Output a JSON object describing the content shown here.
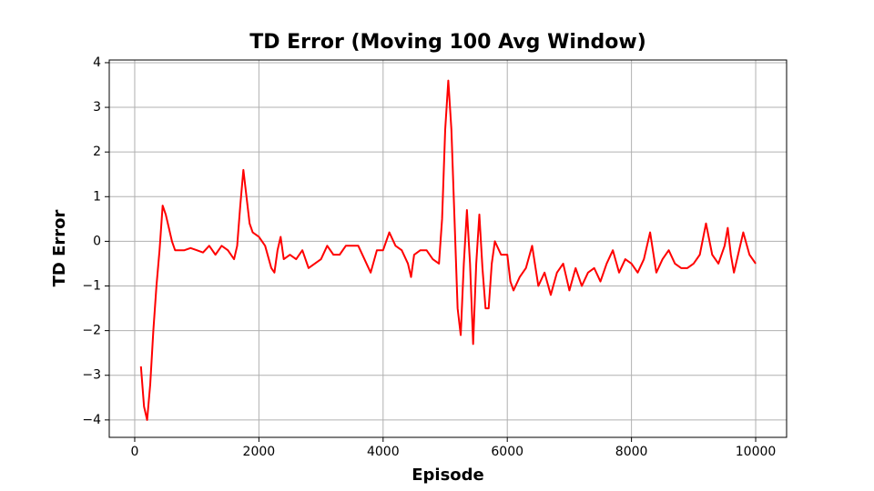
{
  "chart_data": {
    "type": "line",
    "title": "TD Error (Moving 100 Avg Window)",
    "xlabel": "Episode",
    "ylabel": "TD Error",
    "grid": true,
    "xlim": [
      -410,
      10498
    ],
    "ylim": [
      -4.39,
      4.06
    ],
    "xticks": [
      0,
      2000,
      4000,
      6000,
      8000,
      10000
    ],
    "yticks": [
      {
        "value": -4,
        "label": "−4"
      },
      {
        "value": -3,
        "label": "−3"
      },
      {
        "value": -2,
        "label": "−2"
      },
      {
        "value": -1,
        "label": "−1"
      },
      0,
      1,
      2,
      3,
      4
    ],
    "x": [
      100,
      150,
      200,
      250,
      300,
      350,
      400,
      450,
      500,
      550,
      600,
      650,
      700,
      800,
      900,
      1000,
      1100,
      1200,
      1300,
      1400,
      1500,
      1600,
      1650,
      1700,
      1750,
      1800,
      1850,
      1900,
      2000,
      2100,
      2200,
      2250,
      2300,
      2350,
      2400,
      2500,
      2600,
      2700,
      2800,
      2900,
      3000,
      3100,
      3200,
      3300,
      3400,
      3500,
      3600,
      3700,
      3800,
      3900,
      4000,
      4100,
      4200,
      4300,
      4400,
      4450,
      4500,
      4600,
      4700,
      4800,
      4900,
      4950,
      5000,
      5050,
      5100,
      5150,
      5200,
      5250,
      5300,
      5350,
      5400,
      5450,
      5500,
      5550,
      5600,
      5650,
      5700,
      5750,
      5800,
      5900,
      6000,
      6050,
      6100,
      6200,
      6300,
      6400,
      6500,
      6600,
      6700,
      6800,
      6900,
      7000,
      7100,
      7200,
      7300,
      7400,
      7500,
      7600,
      7700,
      7800,
      7900,
      8000,
      8100,
      8200,
      8300,
      8400,
      8500,
      8600,
      8700,
      8800,
      8900,
      9000,
      9100,
      9200,
      9300,
      9400,
      9500,
      9550,
      9600,
      9650,
      9700,
      9800,
      9900,
      10000
    ],
    "series": [
      {
        "name": "TD Error",
        "color": "#ff0000",
        "values": [
          -2.8,
          -3.7,
          -4.0,
          -3.2,
          -2.0,
          -1.0,
          -0.2,
          0.8,
          0.6,
          0.3,
          0.0,
          -0.2,
          -0.2,
          -0.2,
          -0.15,
          -0.2,
          -0.25,
          -0.1,
          -0.3,
          -0.1,
          -0.2,
          -0.4,
          -0.1,
          0.8,
          1.6,
          1.0,
          0.4,
          0.2,
          0.1,
          -0.1,
          -0.6,
          -0.7,
          -0.2,
          0.1,
          -0.4,
          -0.3,
          -0.4,
          -0.2,
          -0.6,
          -0.5,
          -0.4,
          -0.1,
          -0.3,
          -0.3,
          -0.1,
          -0.1,
          -0.1,
          -0.4,
          -0.7,
          -0.2,
          -0.2,
          0.2,
          -0.1,
          -0.2,
          -0.5,
          -0.8,
          -0.3,
          -0.2,
          -0.2,
          -0.4,
          -0.5,
          0.5,
          2.5,
          3.6,
          2.5,
          0.5,
          -1.5,
          -2.1,
          -0.5,
          0.7,
          -0.5,
          -2.3,
          -0.5,
          0.6,
          -0.6,
          -1.5,
          -1.5,
          -0.5,
          0.0,
          -0.3,
          -0.3,
          -0.9,
          -1.1,
          -0.8,
          -0.6,
          -0.1,
          -1.0,
          -0.7,
          -1.2,
          -0.7,
          -0.5,
          -1.1,
          -0.6,
          -1.0,
          -0.7,
          -0.6,
          -0.9,
          -0.5,
          -0.2,
          -0.7,
          -0.4,
          -0.5,
          -0.7,
          -0.4,
          0.2,
          -0.7,
          -0.4,
          -0.2,
          -0.5,
          -0.6,
          -0.6,
          -0.5,
          -0.3,
          0.4,
          -0.3,
          -0.5,
          -0.1,
          0.3,
          -0.3,
          -0.7,
          -0.4,
          0.2,
          -0.3,
          -0.5
        ]
      }
    ]
  }
}
